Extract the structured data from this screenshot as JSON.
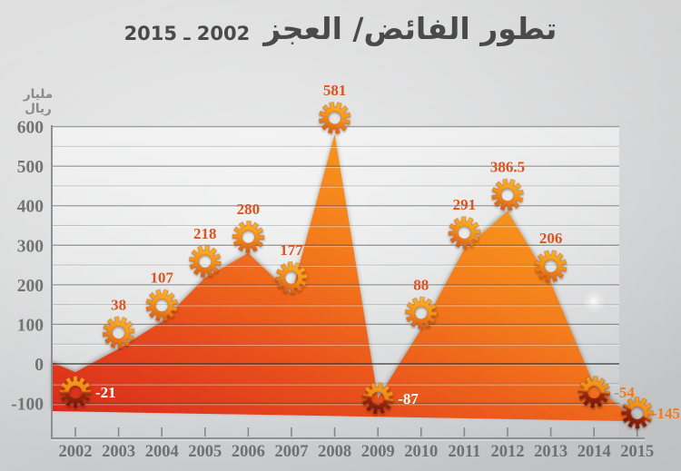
{
  "title": {
    "text": "تطور الفائض/ العجز",
    "years": "2015 ـ 2002"
  },
  "unit_label": "مليار ريال",
  "colors": {
    "title_text": "#4a4a4a",
    "axis_text": "#6f7173",
    "value_label_orange": "#dd5420",
    "value_label_light_orange": "#ef7c1e",
    "value_label_white": "#ffffff",
    "area_red": "#d8281b",
    "area_orange": "#f9a51c",
    "gear_orange": "#f3921c",
    "gear_dark": "#6e1309"
  },
  "icons": {
    "marker": "gear-icon"
  },
  "chart_data": {
    "type": "area",
    "title": "تطور الفائض/ العجز 2002 ـ 2015",
    "xlabel": "",
    "ylabel": "مليار ريال",
    "legend": "none",
    "grid": "major+minor horizontal",
    "categories": [
      "2002",
      "2003",
      "2004",
      "2005",
      "2006",
      "2007",
      "2008",
      "2009",
      "2010",
      "2011",
      "2012",
      "2013",
      "2014",
      "2015"
    ],
    "values": [
      -21,
      38,
      107,
      218,
      280,
      177,
      581,
      -87,
      88,
      291,
      386.5,
      206,
      -54,
      -145
    ],
    "value_labels": [
      "-21",
      "38",
      "107",
      "218",
      "280",
      "177",
      "581",
      "-87",
      "88",
      "291",
      "386.5",
      "206",
      "-54",
      "-145"
    ],
    "label_colors": [
      "#ffffff",
      "#dd5420",
      "#dd5420",
      "#dd5420",
      "#dd5420",
      "#dd5420",
      "#dd5420",
      "#ffffff",
      "#dd5420",
      "#dd5420",
      "#dd5420",
      "#dd5420",
      "#ef7c1e",
      "#ef7c1e"
    ],
    "marker_styles": [
      "dark",
      "orange",
      "orange",
      "orange",
      "orange",
      "orange",
      "orange",
      "dark",
      "orange",
      "orange",
      "orange",
      "orange",
      "dark",
      "dark"
    ],
    "yticks": [
      600,
      500,
      400,
      300,
      200,
      100,
      0,
      -100
    ],
    "minor_yticks": [
      550,
      450,
      350,
      250,
      150,
      50,
      -50
    ],
    "ylim": [
      -180,
      620
    ],
    "area_gradient": [
      "#d8281b",
      "#e9511d",
      "#f47d1e",
      "#f9a51c"
    ],
    "marker_gradient_orange": [
      "#fbb42a",
      "#f3921c",
      "#d95c17"
    ],
    "marker_gradient_dark": [
      "#f5a51f",
      "#ee8718",
      "#9c2c12",
      "#6e1309"
    ]
  }
}
